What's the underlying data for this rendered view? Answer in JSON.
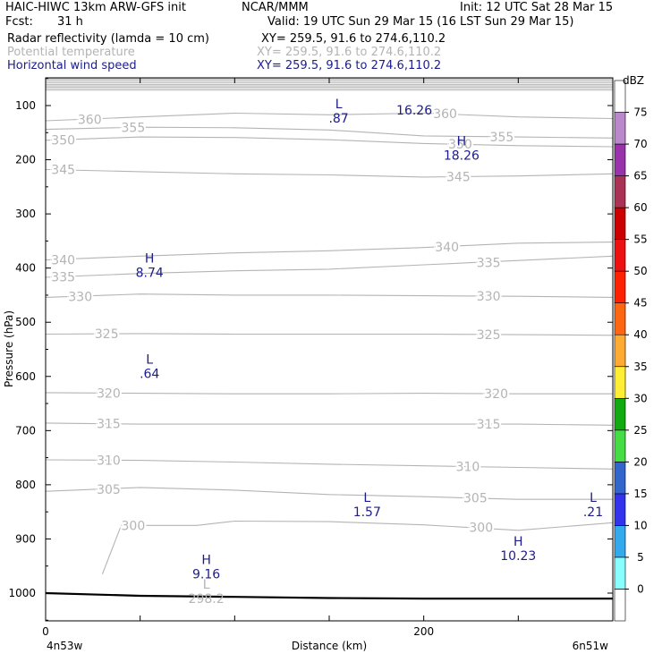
{
  "header": {
    "title": "HAIC-HIWC 13km ARW-GFS init",
    "org": "NCAR/MMM",
    "init": "Init: 12 UTC Sat 28 Mar 15",
    "fcst_label": "Fcst:",
    "fcst_value": "31 h",
    "valid": "Valid: 19 UTC Sun 29 Mar 15 (16 LST Sun 29 Mar 15)",
    "field1": "Radar reflectivity (lamda = 10 cm)",
    "field1_xy": "XY= 259.5, 91.6 to 274.6,110.2",
    "field2": "Potential temperature",
    "field2_xy": "XY= 259.5, 91.6 to 274.6,110.2",
    "field3": "Horizontal wind speed",
    "field3_xy": "XY= 259.5, 91.6 to 274.6,110.2"
  },
  "colors": {
    "theta": "#b4b4b4",
    "wind": "#1c1c8c",
    "terrain": "#000000"
  },
  "chart_data": {
    "type": "line",
    "xlabel": "Distance (km)",
    "ylabel": "Pressure (hPa)",
    "xlim": [
      0,
      300
    ],
    "ylim": [
      1050,
      40
    ],
    "x_ticks": [
      0,
      200
    ],
    "y_ticks": [
      100,
      200,
      300,
      400,
      500,
      600,
      700,
      800,
      900,
      1000
    ],
    "endpoint_left": "4n53w",
    "endpoint_right": "6n51w",
    "grid": false,
    "terrain": {
      "x": [
        0,
        50,
        100,
        150,
        200,
        250,
        300
      ],
      "p": [
        1000,
        1005,
        1007,
        1009,
        1010,
        1010,
        1010
      ]
    },
    "theta_contours": [
      {
        "label": "360",
        "x": [
          0,
          50,
          100,
          150,
          200,
          250,
          300
        ],
        "p": [
          128,
          121,
          114,
          117,
          114,
          121,
          124
        ],
        "labels_at": [
          17,
          205
        ]
      },
      {
        "label": "355",
        "x": [
          0,
          50,
          100,
          150,
          200,
          250,
          300
        ],
        "p": [
          144,
          140,
          141,
          145,
          156,
          158,
          160
        ],
        "labels_at": [
          40,
          235
        ]
      },
      {
        "label": "350",
        "x": [
          0,
          50,
          100,
          150,
          200,
          250,
          300
        ],
        "p": [
          164,
          158,
          159,
          163,
          170,
          174,
          176
        ],
        "labels_at": [
          3,
          213
        ]
      },
      {
        "label": "345",
        "x": [
          0,
          50,
          100,
          150,
          200,
          250,
          300
        ],
        "p": [
          218,
          222,
          226,
          228,
          232,
          230,
          226
        ],
        "labels_at": [
          3,
          212
        ]
      },
      {
        "label": "340",
        "x": [
          0,
          50,
          100,
          150,
          200,
          250,
          300
        ],
        "p": [
          385,
          378,
          372,
          368,
          362,
          354,
          352
        ],
        "labels_at": [
          3,
          206
        ]
      },
      {
        "label": "335",
        "x": [
          0,
          50,
          100,
          150,
          200,
          250,
          300
        ],
        "p": [
          417,
          410,
          405,
          402,
          394,
          386,
          378
        ],
        "labels_at": [
          3,
          228
        ]
      },
      {
        "label": "330",
        "x": [
          0,
          50,
          100,
          150,
          200,
          250,
          300
        ],
        "p": [
          454,
          448,
          450,
          450,
          451,
          452,
          454
        ],
        "labels_at": [
          12,
          228
        ]
      },
      {
        "label": "325",
        "x": [
          0,
          50,
          100,
          150,
          200,
          250,
          300
        ],
        "p": [
          522,
          521,
          522,
          522,
          522,
          523,
          524
        ],
        "labels_at": [
          26,
          228
        ]
      },
      {
        "label": "320",
        "x": [
          0,
          50,
          100,
          150,
          200,
          250,
          300
        ],
        "p": [
          630,
          631,
          632,
          632,
          631,
          632,
          632
        ],
        "labels_at": [
          27,
          232
        ]
      },
      {
        "label": "315",
        "x": [
          0,
          50,
          100,
          150,
          200,
          250,
          300
        ],
        "p": [
          686,
          688,
          688,
          688,
          688,
          688,
          690
        ],
        "labels_at": [
          27,
          228
        ]
      },
      {
        "label": "310",
        "x": [
          0,
          50,
          100,
          150,
          200,
          250,
          300
        ],
        "p": [
          754,
          755,
          758,
          762,
          765,
          768,
          771
        ],
        "labels_at": [
          27,
          217
        ]
      },
      {
        "label": "305",
        "x": [
          0,
          50,
          100,
          150,
          200,
          250,
          300
        ],
        "p": [
          812,
          805,
          810,
          818,
          822,
          827,
          827
        ],
        "labels_at": [
          27,
          221
        ]
      },
      {
        "label": "300",
        "x": [
          30,
          40,
          80,
          100,
          150,
          200,
          250,
          300
        ],
        "p": [
          965,
          875,
          875,
          867,
          868,
          874,
          884,
          870
        ],
        "labels_at": [
          40,
          224
        ]
      }
    ],
    "wind_extrema": [
      {
        "type": "L",
        "value": "16.26",
        "x": 195,
        "p": 60
      },
      {
        "type": "L",
        "value": ".87",
        "x": 155,
        "p": 108
      },
      {
        "type": "H",
        "value": "18.26",
        "x": 220,
        "p": 177
      },
      {
        "type": "H",
        "value": "8.74",
        "x": 55,
        "p": 393
      },
      {
        "type": "L",
        "value": ".64",
        "x": 55,
        "p": 580
      },
      {
        "type": "L",
        "value": "1.57",
        "x": 170,
        "p": 835
      },
      {
        "type": "L",
        "value": ".21",
        "x": 300,
        "p": 835
      },
      {
        "type": "H",
        "value": "10.23",
        "x": 250,
        "p": 916
      },
      {
        "type": "H",
        "value": "9.16",
        "x": 85,
        "p": 950
      }
    ],
    "theta_extrema": [
      {
        "type": "L",
        "value": "298.2",
        "x": 85,
        "p": 1005
      }
    ],
    "colorbar": {
      "title": "dBZ",
      "levels": [
        0,
        5,
        10,
        15,
        20,
        25,
        30,
        35,
        40,
        45,
        50,
        55,
        60,
        65,
        70,
        75
      ],
      "colors": [
        "#ffffff",
        "#88ffff",
        "#33aaee",
        "#3333ee",
        "#3366cc",
        "#44dd44",
        "#11aa11",
        "#ffee33",
        "#ffaa33",
        "#ff6611",
        "#ff2200",
        "#ee1111",
        "#cc0000",
        "#aa3355",
        "#9933aa",
        "#bb88cc",
        "#ffffff"
      ]
    }
  }
}
